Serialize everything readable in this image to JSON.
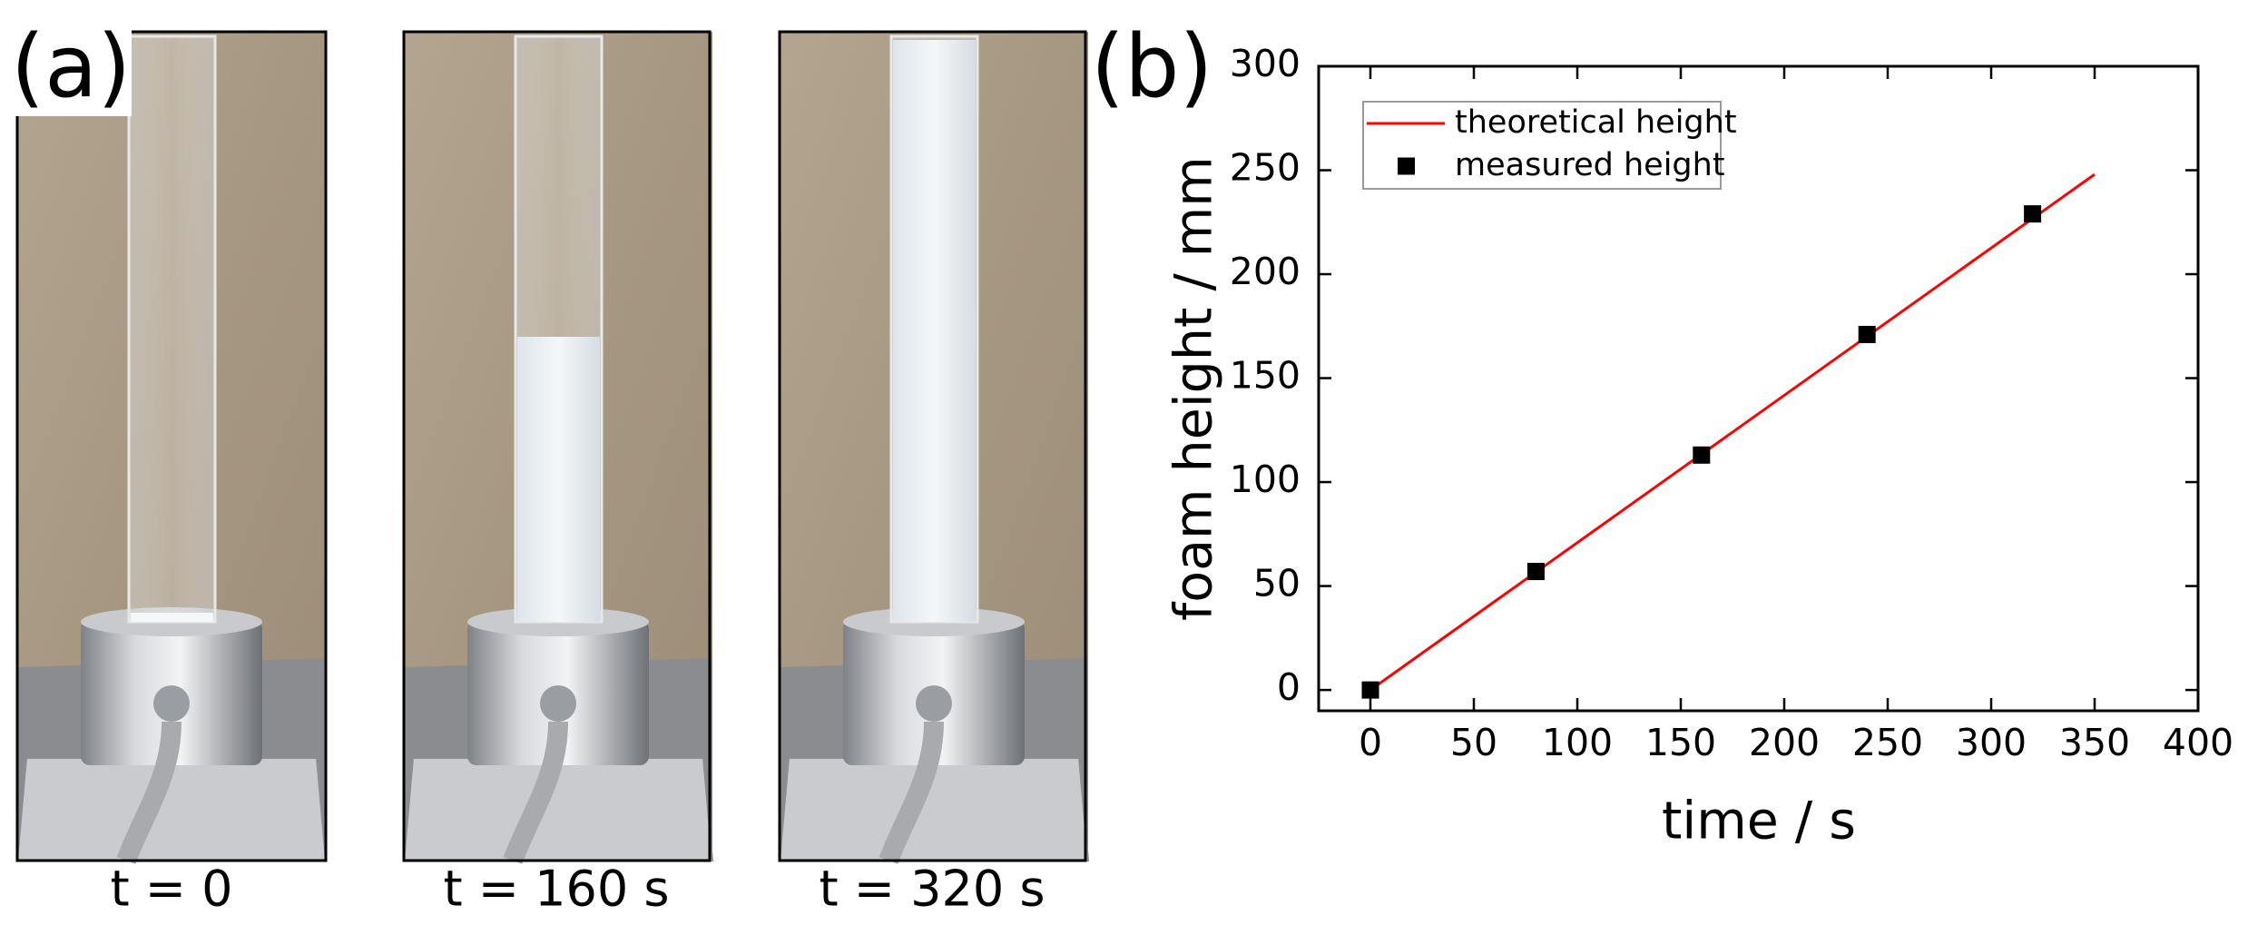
{
  "panel_a": {
    "label": "(a)",
    "captions": [
      "t = 0",
      "t = 160 s",
      "t = 320 s"
    ]
  },
  "chart_data": {
    "type": "line",
    "label": "(b)",
    "x_label": "time / s",
    "y_label": "foam height / mm",
    "series": [
      {
        "name": "theoretical height",
        "color": "#ff0000",
        "style": "line",
        "x": [
          0,
          350
        ],
        "values": [
          0,
          248
        ]
      },
      {
        "name": "measured height",
        "color": "#000000",
        "style": "square",
        "x": [
          0,
          80,
          160,
          240,
          320
        ],
        "values": [
          0,
          57,
          113,
          171,
          229
        ]
      }
    ],
    "xlim": [
      -25,
      400
    ],
    "xticks": [
      0,
      50,
      100,
      150,
      200,
      250,
      300,
      350,
      400
    ],
    "ylim": [
      -10,
      300
    ],
    "yticks": [
      0,
      50,
      100,
      150,
      200,
      250,
      300
    ],
    "legend": "upper left",
    "grid": false
  }
}
